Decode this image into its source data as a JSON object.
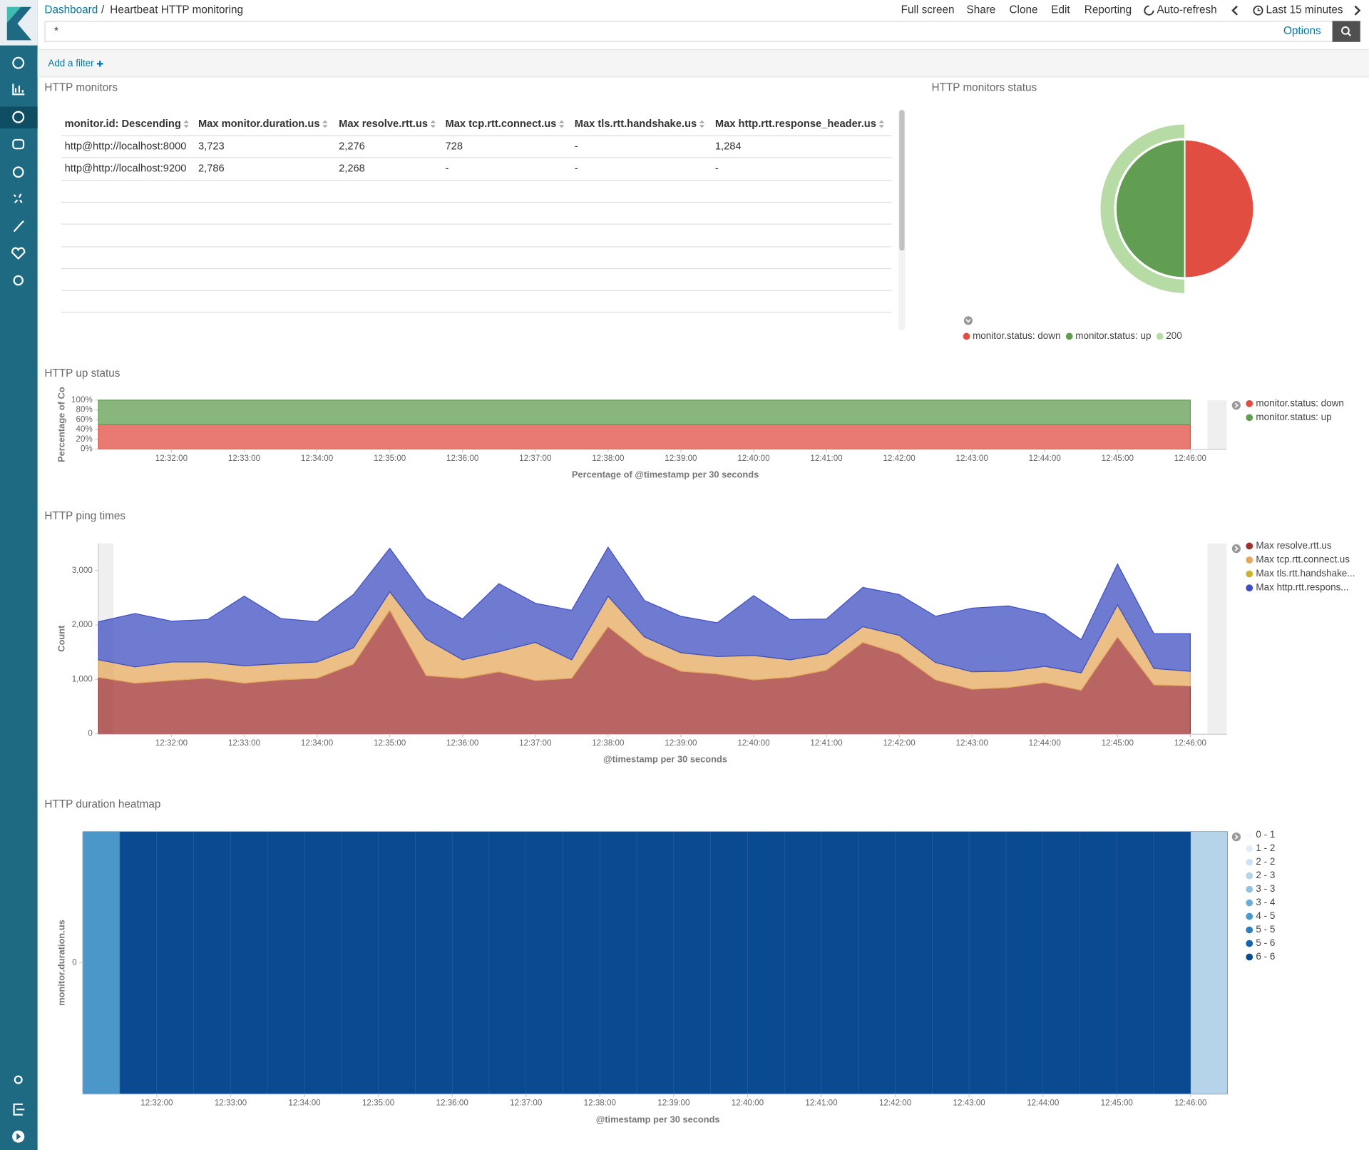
{
  "header": {
    "breadcrumb": "Dashboard",
    "title": "Heartbeat HTTP monitoring",
    "menu": [
      "Full screen",
      "Share",
      "Clone",
      "Edit",
      "Reporting",
      "Auto-refresh",
      "Last 15 minutes"
    ]
  },
  "query": {
    "text": "*",
    "options": "Options"
  },
  "add_filter": "Add a filter",
  "table": {
    "title": "HTTP monitors",
    "columns": [
      "monitor.id: Descending",
      "Max monitor.duration.us",
      "Max resolve.rtt.us",
      "Max tcp.rtt.connect.us",
      "Max tls.rtt.handshake.us",
      "Max http.rtt.response_header.us"
    ],
    "rows": [
      [
        "http@http://localhost:8000",
        "3,723",
        "2,276",
        "728",
        "-",
        "1,284"
      ],
      [
        "http@http://localhost:9200",
        "2,786",
        "2,268",
        "-",
        "-",
        "-"
      ]
    ]
  },
  "chart_data": [
    {
      "type": "pie",
      "title": "HTTP monitors status",
      "series": [
        {
          "name": "monitor.status: down",
          "color": "#e24d42",
          "values": [
            50
          ]
        },
        {
          "name": "monitor.status: up",
          "color": "#629e51",
          "values": [
            50
          ]
        }
      ],
      "outer_series": [
        {
          "name": "200",
          "color": "#b7dba5",
          "values": [
            50
          ]
        }
      ]
    },
    {
      "type": "area",
      "stacked": true,
      "title": "HTTP up status",
      "x": [
        "12:31:00",
        "12:31:30",
        "12:32:00",
        "12:32:30",
        "12:33:00",
        "12:33:30",
        "12:34:00",
        "12:34:30",
        "12:35:00",
        "12:35:30",
        "12:36:00",
        "12:36:30",
        "12:37:00",
        "12:37:30",
        "12:38:00",
        "12:38:30",
        "12:39:00",
        "12:39:30",
        "12:40:00",
        "12:40:30",
        "12:41:00",
        "12:41:30",
        "12:42:00",
        "12:42:30",
        "12:43:00",
        "12:43:30",
        "12:44:00",
        "12:44:30",
        "12:45:00",
        "12:45:30",
        "12:46:00"
      ],
      "xlim": [
        "12:31:00",
        "12:46:30"
      ],
      "xticks": [
        "12:32:00",
        "12:33:00",
        "12:34:00",
        "12:35:00",
        "12:36:00",
        "12:37:00",
        "12:38:00",
        "12:39:00",
        "12:40:00",
        "12:41:00",
        "12:42:00",
        "12:43:00",
        "12:44:00",
        "12:45:00",
        "12:46:00"
      ],
      "xlabel": "Percentage of @timestamp per 30 seconds",
      "ylabel": "Percentage of Co",
      "ylim": [
        0,
        100
      ],
      "yticks": [
        {
          "value": 0,
          "label": "0%"
        },
        {
          "value": 20,
          "label": "20%"
        },
        {
          "value": 40,
          "label": "40%"
        },
        {
          "value": 60,
          "label": "60%"
        },
        {
          "value": 80,
          "label": "80%"
        },
        {
          "value": 100,
          "label": "100%"
        }
      ],
      "legend": "right",
      "series": [
        {
          "name": "monitor.status: down",
          "color": "#e24d42",
          "values": [
            50,
            50,
            50,
            50,
            50,
            50,
            50,
            50,
            50,
            50,
            50,
            50,
            50,
            50,
            50,
            50,
            50,
            50,
            50,
            50,
            50,
            50,
            50,
            50,
            50,
            50,
            50,
            50,
            50,
            50,
            50
          ]
        },
        {
          "name": "monitor.status: up",
          "color": "#629e51",
          "values": [
            50,
            50,
            50,
            50,
            50,
            50,
            50,
            50,
            50,
            50,
            50,
            50,
            50,
            50,
            50,
            50,
            50,
            50,
            50,
            50,
            50,
            50,
            50,
            50,
            50,
            50,
            50,
            50,
            50,
            50,
            50
          ]
        }
      ]
    },
    {
      "type": "area",
      "stacked": true,
      "title": "HTTP ping times",
      "x": [
        "12:31:00",
        "12:31:30",
        "12:32:00",
        "12:32:30",
        "12:33:00",
        "12:33:30",
        "12:34:00",
        "12:34:30",
        "12:35:00",
        "12:35:30",
        "12:36:00",
        "12:36:30",
        "12:37:00",
        "12:37:30",
        "12:38:00",
        "12:38:30",
        "12:39:00",
        "12:39:30",
        "12:40:00",
        "12:40:30",
        "12:41:00",
        "12:41:30",
        "12:42:00",
        "12:42:30",
        "12:43:00",
        "12:43:30",
        "12:44:00",
        "12:44:30",
        "12:45:00",
        "12:45:30",
        "12:46:00"
      ],
      "xlim": [
        "12:31:00",
        "12:46:30"
      ],
      "xticks": [
        "12:32:00",
        "12:33:00",
        "12:34:00",
        "12:35:00",
        "12:36:00",
        "12:37:00",
        "12:38:00",
        "12:39:00",
        "12:40:00",
        "12:41:00",
        "12:42:00",
        "12:43:00",
        "12:44:00",
        "12:45:00",
        "12:46:00"
      ],
      "xlabel": "@timestamp per 30 seconds",
      "ylabel": "Count",
      "ylim": [
        0,
        3500
      ],
      "yticks": [
        0,
        {
          "value": 1000,
          "label": "1,000"
        },
        {
          "value": 2000,
          "label": "2,000"
        },
        {
          "value": 3000,
          "label": "3,000"
        }
      ],
      "legend": "right",
      "series": [
        {
          "name": "Max resolve.rtt.us",
          "color": "#a0322f",
          "values": [
            1040,
            930,
            980,
            1020,
            930,
            990,
            1020,
            1280,
            2270,
            1070,
            1020,
            1140,
            980,
            1020,
            1970,
            1440,
            1150,
            1100,
            990,
            1040,
            1170,
            1680,
            1470,
            990,
            820,
            850,
            940,
            800,
            1780,
            900,
            880
          ]
        },
        {
          "name": "Max tcp.rtt.connect.us",
          "color": "#e5a95e",
          "values": [
            320,
            300,
            340,
            300,
            320,
            300,
            300,
            300,
            340,
            670,
            340,
            370,
            700,
            340,
            560,
            340,
            340,
            320,
            450,
            320,
            300,
            290,
            340,
            320,
            320,
            300,
            300,
            320,
            590,
            300,
            270
          ]
        },
        {
          "name": "Max tls.rtt.handshake...",
          "color": "#c9b13a",
          "values": [
            0,
            0,
            0,
            0,
            0,
            0,
            0,
            0,
            0,
            0,
            0,
            0,
            0,
            0,
            0,
            0,
            0,
            0,
            0,
            0,
            0,
            0,
            0,
            0,
            0,
            0,
            0,
            0,
            0,
            0,
            0
          ]
        },
        {
          "name": "Max http.rtt.respons...",
          "color": "#3f4fc2",
          "values": [
            700,
            980,
            750,
            780,
            1280,
            830,
            740,
            980,
            800,
            750,
            750,
            1250,
            720,
            910,
            900,
            670,
            670,
            620,
            1100,
            740,
            640,
            720,
            750,
            850,
            1170,
            1200,
            960,
            610,
            750,
            640,
            690
          ]
        }
      ]
    },
    {
      "type": "heatmap",
      "title": "HTTP duration heatmap",
      "x": [
        "12:31:00",
        "12:31:30",
        "12:32:00",
        "12:32:30",
        "12:33:00",
        "12:33:30",
        "12:34:00",
        "12:34:30",
        "12:35:00",
        "12:35:30",
        "12:36:00",
        "12:36:30",
        "12:37:00",
        "12:37:30",
        "12:38:00",
        "12:38:30",
        "12:39:00",
        "12:39:30",
        "12:40:00",
        "12:40:30",
        "12:41:00",
        "12:41:30",
        "12:42:00",
        "12:42:30",
        "12:43:00",
        "12:43:30",
        "12:44:00",
        "12:44:30",
        "12:45:00",
        "12:45:30",
        "12:46:00"
      ],
      "xlim": [
        "12:31:00",
        "12:46:30"
      ],
      "xticks": [
        "12:32:00",
        "12:33:00",
        "12:34:00",
        "12:35:00",
        "12:36:00",
        "12:37:00",
        "12:38:00",
        "12:39:00",
        "12:40:00",
        "12:41:00",
        "12:42:00",
        "12:43:00",
        "12:44:00",
        "12:45:00",
        "12:46:00"
      ],
      "xlabel": "@timestamp per 30 seconds",
      "ylabel": "monitor.duration.us",
      "yticks": [
        0
      ],
      "values": [
        4,
        6,
        6,
        6,
        6,
        6,
        6,
        6,
        6,
        6,
        6,
        6,
        6,
        6,
        6,
        6,
        6,
        6,
        6,
        6,
        6,
        6,
        6,
        6,
        6,
        6,
        6,
        6,
        6,
        6,
        2
      ],
      "zlim": [
        0,
        6
      ],
      "legend": "right",
      "scale": [
        {
          "label": "0 - 1",
          "color": "#f7fbff"
        },
        {
          "label": "1 - 2",
          "color": "#e3eef9"
        },
        {
          "label": "2 - 2",
          "color": "#cfe1f2"
        },
        {
          "label": "2 - 3",
          "color": "#b5d4e9"
        },
        {
          "label": "3 - 3",
          "color": "#93c3df"
        },
        {
          "label": "3 - 4",
          "color": "#6daed5"
        },
        {
          "label": "4 - 5",
          "color": "#4b97c9"
        },
        {
          "label": "5 - 5",
          "color": "#2f7ebc"
        },
        {
          "label": "5 - 6",
          "color": "#1864aa"
        },
        {
          "label": "6 - 6",
          "color": "#0a4a90"
        }
      ]
    }
  ]
}
